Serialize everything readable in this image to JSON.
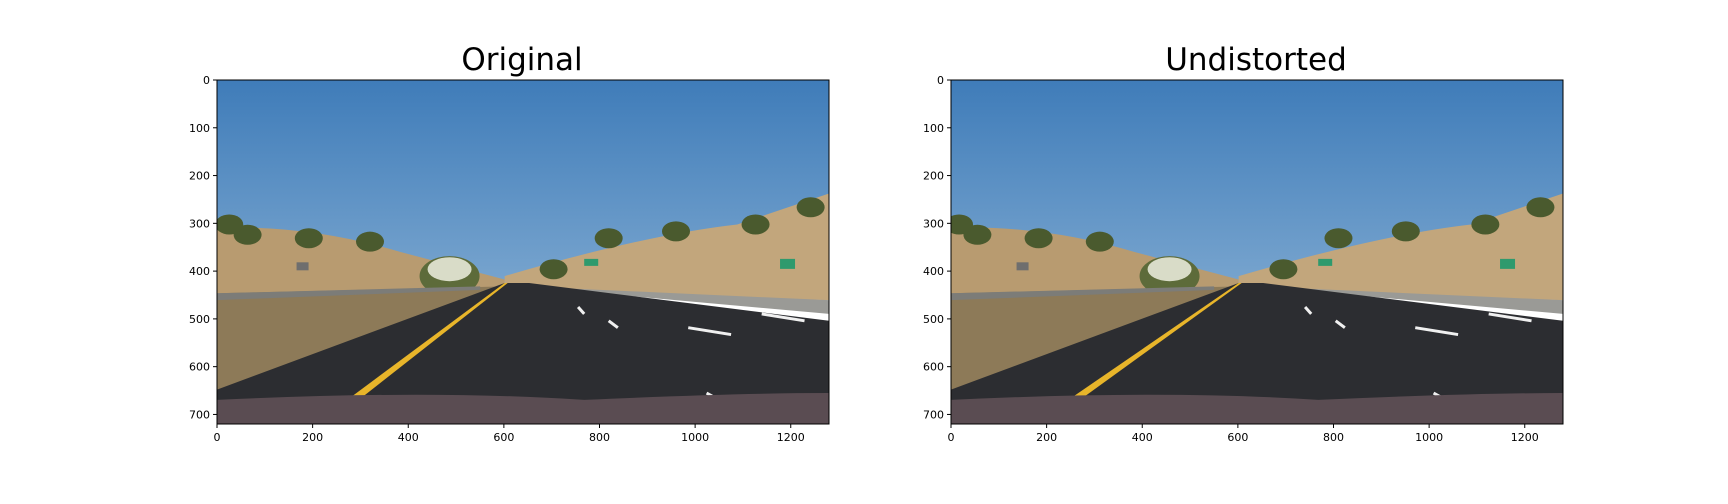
{
  "panels": [
    {
      "title": "Original",
      "image": "road scene, distorted",
      "x_ticks": [
        "0",
        "200",
        "400",
        "600",
        "800",
        "1000",
        "1200"
      ],
      "y_ticks": [
        "0",
        "100",
        "200",
        "300",
        "400",
        "500",
        "600",
        "700"
      ],
      "x_range": [
        0,
        1280
      ],
      "y_range": [
        720,
        0
      ]
    },
    {
      "title": "Undistorted",
      "image": "road scene, undistorted",
      "x_ticks": [
        "0",
        "200",
        "400",
        "600",
        "800",
        "1000",
        "1200"
      ],
      "y_ticks": [
        "0",
        "100",
        "200",
        "300",
        "400",
        "500",
        "600",
        "700"
      ],
      "x_range": [
        0,
        1280
      ],
      "y_range": [
        720,
        0
      ]
    }
  ],
  "colors": {
    "sky": "#4f88bf",
    "hill": "#b89b70",
    "road": "#2c2d31",
    "lane_yellow": "#e8b52a",
    "lane_white": "#f0f0f0",
    "hood": "#5a4c52",
    "trees": "#4a5a2e"
  }
}
